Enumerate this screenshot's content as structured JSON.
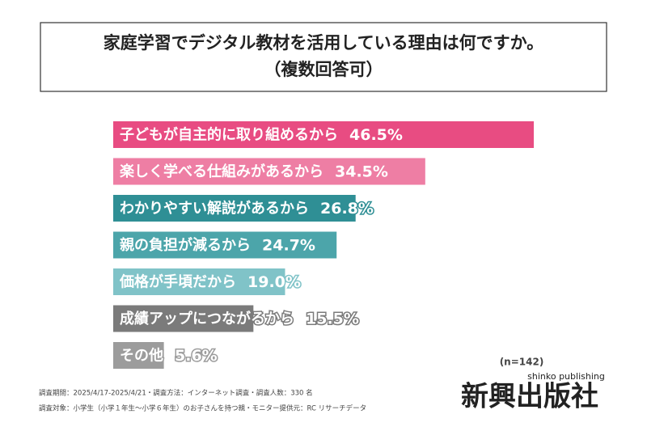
{
  "chart_data": {
    "type": "hbar",
    "title": "家庭学習でデジタル教材を活用している理由は何ですか。",
    "subtitle": "（複数回答可）",
    "note": "(n=142)",
    "categories": [
      "子どもが自主的に取り組めるから",
      "楽しく学べる仕組みがあるから",
      "わかりやすい解説があるから",
      "親の負担が減るから",
      "価格が手頃だから",
      "成績アップにつながるから",
      "その他"
    ],
    "values": [
      46.5,
      34.5,
      26.8,
      24.7,
      19.0,
      15.5,
      5.6
    ],
    "value_labels": [
      "46.5%",
      "34.5%",
      "26.8%",
      "24.7%",
      "19.0%",
      "15.5%",
      "5.6%"
    ],
    "colors": [
      "#e84c82",
      "#ee7ea4",
      "#2f8f95",
      "#4ca5aa",
      "#80c3c8",
      "#7b7b7b",
      "#9c9c9c"
    ]
  },
  "footer": {
    "notes": [
      "調査期間：2025/4/17-2025/4/21・調査方法：インターネット調査・調査人数：330 名",
      "調査対象：小学生（小学１年生～小学６年生）のお子さんを持つ親・モニター提供元：RC リサーチデータ"
    ],
    "logo": "新興出版社",
    "logo_sub": "shinko publishing"
  }
}
